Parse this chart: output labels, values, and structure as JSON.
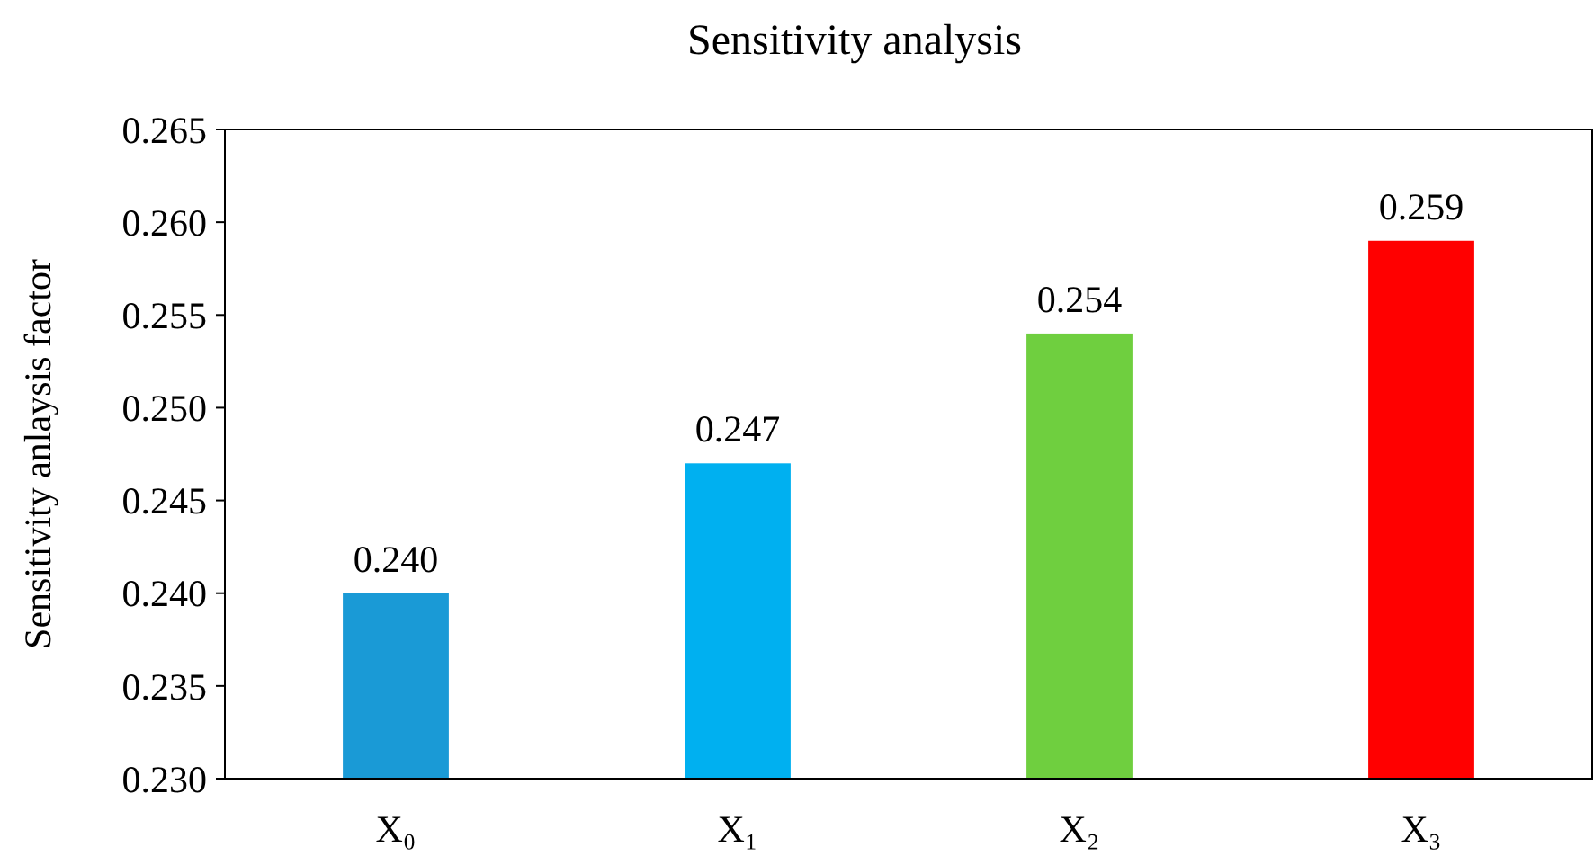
{
  "chart_data": {
    "type": "bar",
    "title": "Sensitivity analysis",
    "ylabel": "Sensitivity anlaysis factor",
    "categories": [
      "X₀",
      "X₁",
      "X₂",
      "X₃"
    ],
    "values": [
      0.24,
      0.247,
      0.254,
      0.259
    ],
    "value_labels": [
      "0.240",
      "0.247",
      "0.254",
      "0.259"
    ],
    "colors": [
      "#1a9ad6",
      "#00b0f0",
      "#6fcf3f",
      "#ff0000"
    ],
    "ylim": [
      0.23,
      0.265
    ],
    "yticks": [
      {
        "value": 0.23,
        "label": "0.230"
      },
      0.235,
      {
        "value": 0.24,
        "label": "0.240"
      },
      0.245,
      {
        "value": 0.25,
        "label": "0.250"
      },
      0.255,
      {
        "value": 0.26,
        "label": "0.260"
      },
      0.265
    ]
  }
}
